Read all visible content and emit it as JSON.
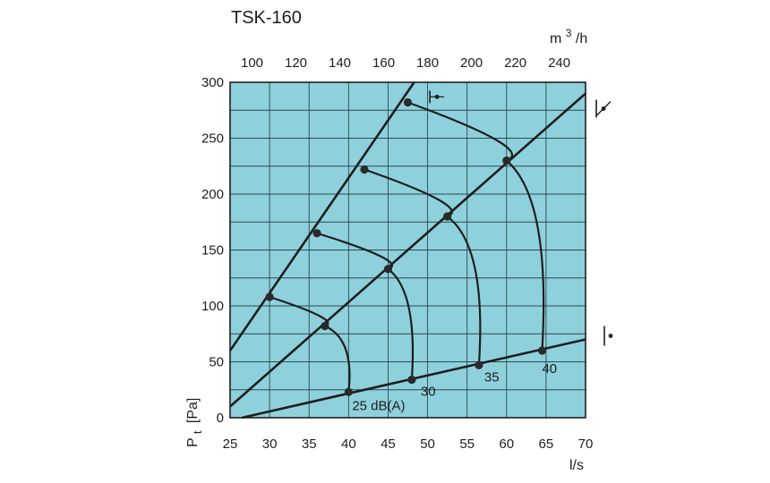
{
  "chart_data": {
    "type": "line",
    "title": "TSK-160",
    "xlabel": "l/s",
    "ylabel": "Pt [Pa]",
    "ylabel_main": "P",
    "ylabel_sub": "t",
    "ylabel_unit": "[Pa]",
    "x2label_base": "m",
    "x2label_exp": "3",
    "x2label_tail": "/h",
    "xlim": [
      25,
      70
    ],
    "ylim": [
      0,
      300
    ],
    "x2lim": [
      90,
      252
    ],
    "grid": true,
    "x_ticks": [
      "25",
      "30",
      "35",
      "40",
      "45",
      "50",
      "55",
      "60",
      "65",
      "70"
    ],
    "y_ticks": [
      "0",
      "50",
      "100",
      "150",
      "200",
      "250",
      "300"
    ],
    "x2_ticks": [
      "100",
      "120",
      "140",
      "160",
      "180",
      "200",
      "220",
      "240"
    ],
    "colors": {
      "plot_bg": "#8ed1dc",
      "grid": "#2c4a50",
      "line": "#1e1e1e",
      "marker": "#2a2a2a"
    },
    "system_lines": [
      {
        "name": "steep",
        "points": [
          [
            25,
            60
          ],
          [
            48.3,
            300
          ]
        ]
      },
      {
        "name": "medium",
        "points": [
          [
            25,
            10
          ],
          [
            70,
            290
          ]
        ]
      },
      {
        "name": "flat",
        "points": [
          [
            26.5,
            0
          ],
          [
            70,
            70
          ]
        ]
      }
    ],
    "series": [
      {
        "name": "25 dB(A)",
        "label": "25 dB(A)",
        "points": [
          [
            30,
            108
          ],
          [
            37,
            82
          ],
          [
            40,
            23
          ]
        ]
      },
      {
        "name": "30",
        "label": "30",
        "points": [
          [
            36,
            165
          ],
          [
            45,
            133
          ],
          [
            48,
            34
          ]
        ]
      },
      {
        "name": "35",
        "label": "35",
        "points": [
          [
            42,
            222
          ],
          [
            52.5,
            180
          ],
          [
            56.5,
            47
          ]
        ]
      },
      {
        "name": "40",
        "label": "40",
        "points": [
          [
            47.5,
            282
          ],
          [
            60,
            230
          ],
          [
            64.5,
            60
          ]
        ]
      }
    ],
    "symbols": [
      {
        "name": "damper-closed-symbol",
        "x": 51.2,
        "y": 287
      },
      {
        "name": "damper-half-symbol",
        "line": "medium"
      },
      {
        "name": "damper-open-symbol",
        "line": "flat"
      }
    ]
  }
}
